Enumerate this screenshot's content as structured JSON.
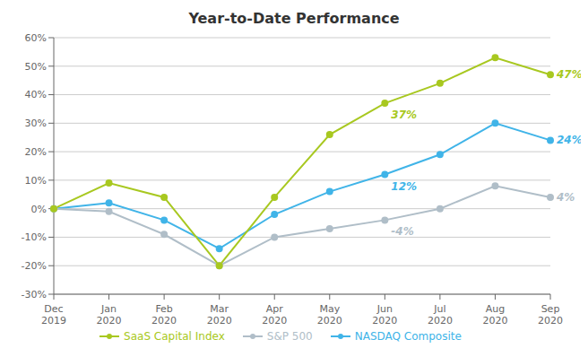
{
  "chart_data": {
    "type": "line",
    "title": "Year-to-Date Performance",
    "categories": [
      "Dec\n2019",
      "Jan\n2020",
      "Feb\n2020",
      "Mar\n2020",
      "Apr\n2020",
      "May\n2020",
      "Jun\n2020",
      "Jul\n2020",
      "Aug\n2020",
      "Sep\n2020"
    ],
    "series": [
      {
        "name": "SaaS Capital Index",
        "color": "#a8c820",
        "values": [
          0,
          9,
          4,
          -20,
          4,
          26,
          37,
          44,
          53,
          47
        ]
      },
      {
        "name": "S&P 500",
        "color": "#b0bec8",
        "values": [
          0,
          -1,
          -9,
          -20,
          -10,
          -7,
          -4,
          0,
          8,
          4
        ]
      },
      {
        "name": "NASDAQ Composite",
        "color": "#40b4e8",
        "values": [
          0,
          2,
          -4,
          -14,
          -2,
          6,
          12,
          19,
          30,
          24
        ]
      }
    ],
    "ylim": [
      -30,
      60
    ],
    "yticks": [
      {
        "value": -30,
        "label": "-30%"
      },
      {
        "value": -20,
        "label": "-20%"
      },
      {
        "value": -10,
        "label": "-10%"
      },
      {
        "value": 0,
        "label": "0%"
      },
      {
        "value": 10,
        "label": "10%"
      },
      {
        "value": 20,
        "label": "20%"
      },
      {
        "value": 30,
        "label": "30%"
      },
      {
        "value": 40,
        "label": "40%"
      },
      {
        "value": 50,
        "label": "50%"
      },
      {
        "value": 60,
        "label": "60%"
      }
    ],
    "grid": true,
    "legend": "bottom",
    "marker": "circle",
    "annotations": [
      {
        "text": "47%",
        "x": 9,
        "y": 47,
        "color": "#a8c820"
      },
      {
        "text": "37%",
        "x": 6,
        "y": 37,
        "color": "#a8c820"
      },
      {
        "text": "24%",
        "x": 9,
        "y": 24,
        "color": "#40b4e8"
      },
      {
        "text": "12%",
        "x": 6,
        "y": 12,
        "color": "#40b4e8"
      },
      {
        "text": "4%",
        "x": 9,
        "y": 4,
        "color": "#b0bec8"
      },
      {
        "text": "-4%",
        "x": 6,
        "y": -4,
        "color": "#b0bec8"
      }
    ]
  }
}
